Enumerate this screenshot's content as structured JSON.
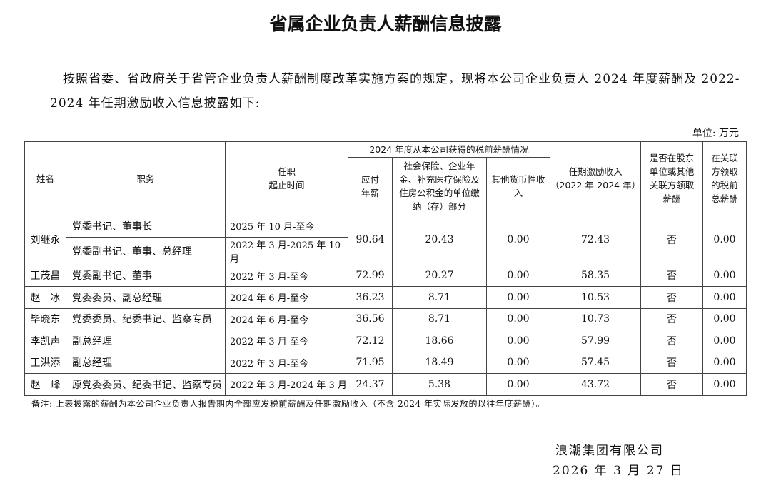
{
  "title": "省属企业负责人薪酬信息披露",
  "intro": "按照省委、省政府关于省管企业负责人薪酬制度改革实施方案的规定，现将本公司企业负责人 2024 年度薪酬及 2022-2024 年任期激励收入信息披露如下:",
  "unit": "单位: 万元",
  "headers": {
    "name": "姓名",
    "position": "职务",
    "term": "任职",
    "term2": "起止时间",
    "group": "2024 年度从本公司获得的税前薪酬情况",
    "salary": "应付年薪",
    "insurance": "社会保险、企业年金、补充医疗保险及住房公积金的单位缴纳（存）部分",
    "other": "其他货币性收入",
    "incentive": "任期激励收入",
    "incentive2": "（2022 年-2024 年）",
    "related": "是否在股东单位或其他关联方领取薪酬",
    "related_total": "在关联方领取的税前总薪酬"
  },
  "rows": [
    {
      "name": "刘继永",
      "positions": [
        {
          "title": "党委书记、董事长",
          "term": "2025 年 10 月-至今"
        },
        {
          "title": "党委副书记、董事、总经理",
          "term": "2022 年 3 月-2025 年 10 月"
        }
      ],
      "salary": "90.64",
      "insurance": "20.43",
      "other": "0.00",
      "incentive": "72.43",
      "related": "否",
      "related_total": "0.00"
    },
    {
      "name": "王茂昌",
      "title": "党委副书记、董事",
      "term": "2022 年 3 月-至今",
      "salary": "72.99",
      "insurance": "20.27",
      "other": "0.00",
      "incentive": "58.35",
      "related": "否",
      "related_total": "0.00"
    },
    {
      "name": "赵　冰",
      "title": "党委委员、副总经理",
      "term": "2024 年 6 月-至今",
      "salary": "36.23",
      "insurance": "8.71",
      "other": "0.00",
      "incentive": "10.53",
      "related": "否",
      "related_total": "0.00"
    },
    {
      "name": "毕晓东",
      "title": "党委委员、纪委书记、监察专员",
      "term": "2024 年 6 月-至今",
      "salary": "36.56",
      "insurance": "8.71",
      "other": "0.00",
      "incentive": "10.73",
      "related": "否",
      "related_total": "0.00"
    },
    {
      "name": "李凯声",
      "title": "副总经理",
      "term": "2022 年 3 月-至今",
      "salary": "72.12",
      "insurance": "18.66",
      "other": "0.00",
      "incentive": "57.99",
      "related": "否",
      "related_total": "0.00"
    },
    {
      "name": "王洪添",
      "title": "副总经理",
      "term": "2022 年 3 月-至今",
      "salary": "71.95",
      "insurance": "18.49",
      "other": "0.00",
      "incentive": "57.45",
      "related": "否",
      "related_total": "0.00"
    },
    {
      "name": "赵　峰",
      "title": "原党委委员、纪委书记、监察专员",
      "term": "2022 年 3 月-2024 年 3 月",
      "salary": "24.37",
      "insurance": "5.38",
      "other": "0.00",
      "incentive": "43.72",
      "related": "否",
      "related_total": "0.00"
    }
  ],
  "note": "备注: 上表披露的薪酬为本公司企业负责人报告期内全部应发税前薪酬及任期激励收入（不含 2024 年实际发放的以往年度薪酬）。",
  "company": "浪潮集团有限公司",
  "date": "2026 年  3 月 27 日"
}
